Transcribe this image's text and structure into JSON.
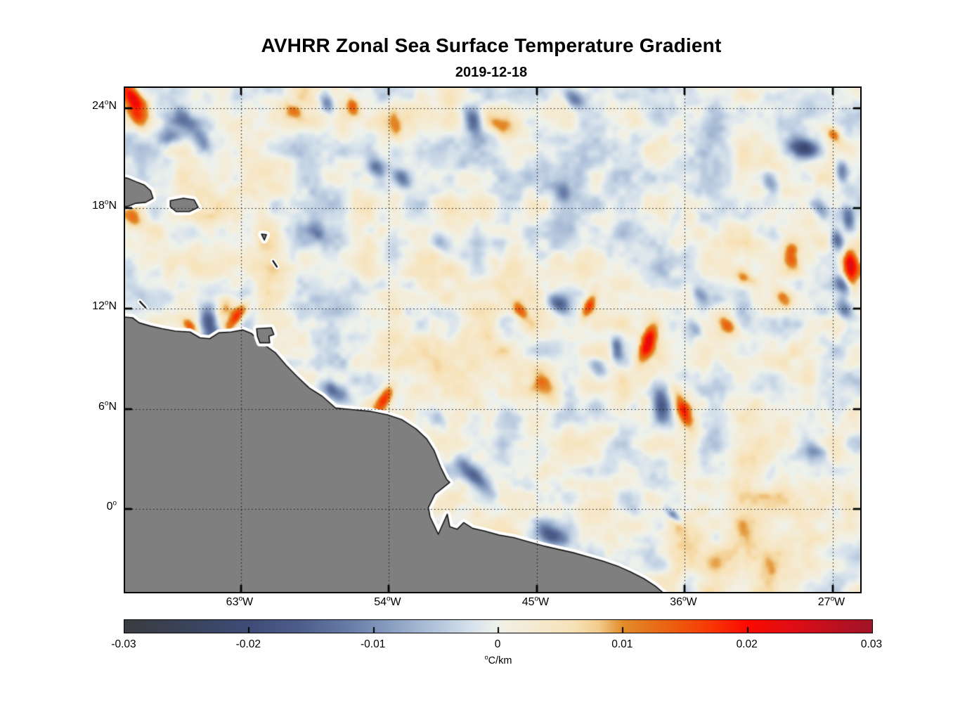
{
  "title": "AVHRR Zonal Sea Surface Temperature Gradient",
  "subtitle": "2019-12-18",
  "chart_data": {
    "type": "heatmap",
    "title": "AVHRR Zonal Sea Surface Temperature Gradient",
    "date": "2019-12-18",
    "grid": "dotted",
    "lon_range": [
      70.05,
      25.33
    ],
    "lat_range": [
      25.2,
      -4.95
    ],
    "x_ticks": [
      {
        "label": "63°W",
        "lon": 63
      },
      {
        "label": "54°W",
        "lon": 54
      },
      {
        "label": "45°W",
        "lon": 45
      },
      {
        "label": "36°W",
        "lon": 36
      },
      {
        "label": "27°W",
        "lon": 27
      }
    ],
    "y_ticks": [
      {
        "label": "24°N",
        "lat": 24
      },
      {
        "label": "18°N",
        "lat": 18
      },
      {
        "label": "12°N",
        "lat": 12
      },
      {
        "label": "6°N",
        "lat": 6
      },
      {
        "label": "0°",
        "lat": 0
      }
    ],
    "colorbar": {
      "min": -0.03,
      "max": 0.03,
      "unit": "°C/km",
      "ticks": [
        {
          "v": -0.03,
          "label": "-0.03"
        },
        {
          "v": -0.02,
          "label": "-0.02"
        },
        {
          "v": -0.01,
          "label": "-0.01"
        },
        {
          "v": 0,
          "label": "0"
        },
        {
          "v": 0.01,
          "label": "0.01"
        },
        {
          "v": 0.02,
          "label": "0.02"
        },
        {
          "v": 0.03,
          "label": "0.03"
        }
      ],
      "stops": [
        [
          -0.03,
          "#3b3c40"
        ],
        [
          -0.027,
          "#3a4050"
        ],
        [
          -0.024,
          "#3a4560"
        ],
        [
          -0.02,
          "#3f4c77"
        ],
        [
          -0.016,
          "#4d5d8b"
        ],
        [
          -0.012,
          "#677ca6"
        ],
        [
          -0.0085,
          "#8ba0c2"
        ],
        [
          -0.005,
          "#b3c5dc"
        ],
        [
          -0.002,
          "#d8e3ec"
        ],
        [
          -0.0008,
          "#e7edeb"
        ],
        [
          0,
          "#eef2ec"
        ],
        [
          0.0008,
          "#f2efe2"
        ],
        [
          0.003,
          "#f5ead0"
        ],
        [
          0.006,
          "#f7e2b8"
        ],
        [
          0.008,
          "#f2cd8e"
        ],
        [
          0.01,
          "#e28c2a"
        ],
        [
          0.0135,
          "#ea6412"
        ],
        [
          0.017,
          "#f83803"
        ],
        [
          0.02,
          "#fb0a00"
        ],
        [
          0.024,
          "#dc0e16"
        ],
        [
          0.027,
          "#bc1020"
        ],
        [
          0.03,
          "#a21327"
        ]
      ]
    },
    "colors": {
      "land": "#7f7f7f",
      "coastline": "#141414",
      "coast_halo": "#ffffff",
      "gridline": "#1a1a1a",
      "axis": "#000000"
    },
    "ocean_noise": {
      "seed": 7,
      "octaves": [
        {
          "scale": 42,
          "amp": 0.0048
        },
        {
          "scale": 19,
          "amp": 0.0026
        },
        {
          "scale": 9,
          "amp": 0.0012
        }
      ]
    },
    "anomalies": [
      [
        69.6,
        24.62,
        0.024,
        1.0,
        0.4,
        50
      ],
      [
        69.3,
        23.4,
        0.01,
        0.5,
        0.3,
        50
      ],
      [
        63.3,
        11.45,
        0.02,
        0.75,
        0.28,
        -57
      ],
      [
        63.95,
        12.0,
        0.011,
        0.5,
        0.3,
        -57
      ],
      [
        64.9,
        11.0,
        -0.017,
        0.75,
        0.38,
        78
      ],
      [
        66.1,
        10.95,
        0.013,
        0.4,
        0.22,
        45
      ],
      [
        54.25,
        6.6,
        0.019,
        0.8,
        0.3,
        -60
      ],
      [
        57.3,
        7.0,
        -0.014,
        0.75,
        0.36,
        36
      ],
      [
        38.2,
        10.0,
        0.021,
        0.8,
        0.3,
        110
      ],
      [
        37.4,
        6.3,
        -0.019,
        1.0,
        0.42,
        85
      ],
      [
        36.0,
        5.8,
        0.02,
        0.85,
        0.34,
        67
      ],
      [
        25.9,
        14.5,
        0.024,
        0.7,
        0.33,
        85
      ],
      [
        29.45,
        15.1,
        0.016,
        0.65,
        0.36,
        80
      ],
      [
        28.7,
        21.6,
        -0.017,
        0.7,
        0.38,
        15
      ],
      [
        48.7,
        1.9,
        -0.015,
        0.95,
        0.33,
        45
      ],
      [
        44.0,
        -1.6,
        -0.016,
        0.65,
        0.38,
        30
      ],
      [
        43.6,
        12.2,
        -0.015,
        0.6,
        0.36,
        35
      ],
      [
        41.8,
        12.2,
        0.016,
        0.6,
        0.26,
        114
      ],
      [
        40.1,
        9.6,
        -0.013,
        0.5,
        0.24,
        88
      ],
      [
        41.2,
        8.4,
        -0.011,
        0.55,
        0.33,
        40
      ],
      [
        57.75,
        24.3,
        -0.015,
        0.5,
        0.3,
        75
      ],
      [
        56.2,
        24.1,
        0.011,
        0.42,
        0.26,
        70
      ],
      [
        48.9,
        23.3,
        -0.016,
        0.55,
        0.33,
        70
      ],
      [
        42.8,
        24.6,
        -0.014,
        0.5,
        0.3,
        45
      ],
      [
        66.5,
        23.2,
        -0.012,
        0.75,
        0.42,
        35
      ],
      [
        65.3,
        21.9,
        -0.01,
        0.55,
        0.38,
        65
      ],
      [
        67.3,
        22.3,
        -0.009,
        0.45,
        0.33,
        0
      ],
      [
        26.4,
        20.2,
        -0.015,
        0.5,
        0.28,
        80
      ],
      [
        26.0,
        17.3,
        -0.016,
        0.55,
        0.28,
        85
      ],
      [
        26.7,
        16.2,
        -0.018,
        0.5,
        0.28,
        75
      ],
      [
        26.3,
        13.4,
        -0.013,
        0.45,
        0.28,
        65
      ],
      [
        26.3,
        12.0,
        -0.011,
        0.45,
        0.28,
        70
      ],
      [
        27.8,
        18.1,
        -0.01,
        0.45,
        0.3,
        50
      ],
      [
        26.9,
        22.4,
        0.012,
        0.42,
        0.27,
        60
      ],
      [
        29.9,
        12.6,
        0.01,
        0.45,
        0.28,
        50
      ],
      [
        33.4,
        11.0,
        0.013,
        0.55,
        0.32,
        35
      ],
      [
        32.3,
        13.8,
        0.01,
        0.5,
        0.28,
        25
      ],
      [
        35.0,
        12.8,
        -0.008,
        0.45,
        0.28,
        45
      ],
      [
        35.3,
        10.7,
        -0.008,
        0.45,
        0.28,
        45
      ],
      [
        53.6,
        22.9,
        0.01,
        0.6,
        0.28,
        80
      ],
      [
        53.2,
        19.8,
        -0.013,
        0.45,
        0.3,
        45
      ],
      [
        54.8,
        20.4,
        -0.011,
        0.45,
        0.32,
        70
      ],
      [
        47.0,
        22.8,
        0.008,
        0.85,
        0.45,
        30
      ],
      [
        50.6,
        15.9,
        -0.008,
        0.55,
        0.36,
        45
      ],
      [
        58.3,
        16.5,
        -0.007,
        0.5,
        0.36,
        30
      ],
      [
        43.5,
        19.0,
        -0.008,
        0.5,
        0.33,
        45
      ],
      [
        30.7,
        19.5,
        -0.009,
        0.5,
        0.33,
        60
      ],
      [
        60.3,
        6.9,
        -0.009,
        0.5,
        0.32,
        45
      ],
      [
        69.5,
        17.4,
        0.009,
        0.55,
        0.38,
        50
      ],
      [
        59.8,
        23.8,
        0.009,
        0.5,
        0.28,
        30
      ],
      [
        46.0,
        11.9,
        0.012,
        0.5,
        0.26,
        55
      ],
      [
        44.5,
        7.5,
        0.009,
        0.85,
        0.45,
        60
      ],
      [
        51.0,
        5.4,
        -0.007,
        0.5,
        0.36,
        45
      ],
      [
        36.6,
        -0.4,
        -0.012,
        0.4,
        0.18,
        40
      ],
      [
        28.0,
        3.5,
        -0.008,
        0.55,
        0.36,
        20
      ],
      [
        49.5,
        9.0,
        0.004,
        3.5,
        2.0,
        20
      ],
      [
        33.0,
        -2.0,
        0.0045,
        4.0,
        2.2,
        10
      ],
      [
        31.5,
        6.0,
        0.003,
        3.0,
        2.0,
        0
      ],
      [
        63.5,
        16.5,
        0.0025,
        3.0,
        2.2,
        0
      ],
      [
        45.0,
        20.5,
        -0.002,
        3.5,
        2.5,
        0
      ]
    ],
    "land_polygons": {
      "south_america": [
        [
          70.7,
          11.55
        ],
        [
          69.6,
          11.45
        ],
        [
          69.2,
          11.15
        ],
        [
          68.5,
          10.95
        ],
        [
          67.8,
          10.8
        ],
        [
          67.0,
          10.65
        ],
        [
          66.1,
          10.6
        ],
        [
          65.5,
          10.25
        ],
        [
          64.9,
          10.2
        ],
        [
          64.35,
          10.55
        ],
        [
          63.6,
          10.6
        ],
        [
          62.9,
          10.72
        ],
        [
          62.35,
          10.5
        ],
        [
          61.95,
          10.1
        ],
        [
          61.6,
          9.85
        ],
        [
          60.9,
          9.35
        ],
        [
          60.25,
          8.6
        ],
        [
          59.6,
          7.95
        ],
        [
          58.85,
          7.25
        ],
        [
          58.05,
          6.75
        ],
        [
          57.25,
          6.05
        ],
        [
          56.2,
          5.95
        ],
        [
          55.1,
          5.85
        ],
        [
          54.1,
          5.65
        ],
        [
          53.2,
          5.35
        ],
        [
          52.35,
          4.8
        ],
        [
          51.7,
          4.2
        ],
        [
          51.25,
          3.5
        ],
        [
          50.85,
          2.5
        ],
        [
          50.5,
          1.8
        ],
        [
          50.3,
          1.6
        ],
        [
          51.2,
          0.9
        ],
        [
          51.6,
          0.1
        ],
        [
          51.5,
          -0.45
        ],
        [
          51.0,
          -1.5
        ],
        [
          50.45,
          -0.3
        ],
        [
          50.3,
          -1.05
        ],
        [
          49.85,
          -1.2
        ],
        [
          49.45,
          -0.8
        ],
        [
          48.9,
          -1.15
        ],
        [
          48.2,
          -1.3
        ],
        [
          47.3,
          -1.55
        ],
        [
          46.4,
          -1.7
        ],
        [
          45.5,
          -1.95
        ],
        [
          44.6,
          -2.2
        ],
        [
          43.7,
          -2.4
        ],
        [
          42.8,
          -2.6
        ],
        [
          41.9,
          -2.85
        ],
        [
          41.0,
          -3.1
        ],
        [
          40.1,
          -3.4
        ],
        [
          39.3,
          -3.75
        ],
        [
          38.5,
          -4.15
        ],
        [
          37.8,
          -4.6
        ],
        [
          37.2,
          -5.1
        ],
        [
          36.8,
          -5.7
        ],
        [
          70.7,
          -5.7
        ]
      ],
      "hispaniola": [
        [
          70.6,
          19.9
        ],
        [
          69.9,
          19.8
        ],
        [
          69.3,
          19.55
        ],
        [
          68.9,
          19.4
        ],
        [
          68.5,
          19.05
        ],
        [
          68.35,
          18.6
        ],
        [
          68.8,
          18.35
        ],
        [
          69.4,
          18.3
        ],
        [
          69.9,
          18.1
        ],
        [
          70.6,
          18.15
        ]
      ],
      "puerto_rico": [
        [
          67.3,
          18.45
        ],
        [
          66.5,
          18.6
        ],
        [
          65.85,
          18.5
        ],
        [
          65.6,
          18.05
        ],
        [
          66.15,
          17.8
        ],
        [
          66.95,
          17.8
        ],
        [
          67.3,
          18.1
        ]
      ],
      "trinidad": [
        [
          62.05,
          10.8
        ],
        [
          61.15,
          10.85
        ],
        [
          61.0,
          10.45
        ],
        [
          61.3,
          10.35
        ],
        [
          61.25,
          9.95
        ],
        [
          61.85,
          9.95
        ],
        [
          62.0,
          10.35
        ]
      ],
      "guadeloupe": [
        [
          61.75,
          16.45
        ],
        [
          61.45,
          16.42
        ],
        [
          61.58,
          16.1
        ]
      ]
    },
    "island_lines": {
      "curacao": [
        [
          69.15,
          12.42
        ],
        [
          68.8,
          12.05
        ]
      ],
      "martinique": [
        [
          61.05,
          14.85
        ],
        [
          60.82,
          14.5
        ]
      ]
    }
  }
}
